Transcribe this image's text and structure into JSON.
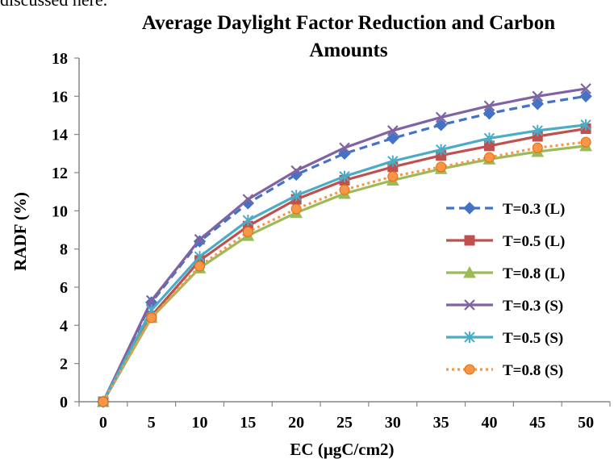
{
  "top_text": "discussed here.",
  "chart_data": {
    "type": "line",
    "title_lines": [
      "Average Daylight Factor Reduction and Carbon",
      "Amounts"
    ],
    "xlabel": "EC (μgC/cm2)",
    "ylabel": "RADF (%)",
    "categories": [
      "0",
      "5",
      "10",
      "15",
      "20",
      "25",
      "30",
      "35",
      "40",
      "45",
      "50"
    ],
    "ylim": [
      0,
      18
    ],
    "yticks": [
      "0",
      "2",
      "4",
      "6",
      "8",
      "10",
      "12",
      "14",
      "16",
      "18"
    ],
    "grid": false,
    "legend_position": "right",
    "series": [
      {
        "name": "T=0.3 (L)",
        "color": "#4472C4",
        "marker": "diamond",
        "dash": "dashed",
        "values": [
          0,
          5.2,
          8.4,
          10.4,
          11.9,
          13.0,
          13.8,
          14.5,
          15.1,
          15.6,
          16.0
        ]
      },
      {
        "name": "T=0.5 (L)",
        "color": "#C0504D",
        "marker": "square",
        "dash": "solid",
        "values": [
          0,
          4.5,
          7.4,
          9.2,
          10.6,
          11.6,
          12.3,
          12.9,
          13.4,
          13.9,
          14.3
        ]
      },
      {
        "name": "T=0.8 (L)",
        "color": "#9BBB59",
        "marker": "triangle",
        "dash": "solid",
        "values": [
          0,
          4.4,
          7.0,
          8.7,
          9.9,
          10.9,
          11.6,
          12.2,
          12.7,
          13.1,
          13.4
        ]
      },
      {
        "name": "T=0.3 (S)",
        "color": "#8064A2",
        "marker": "x",
        "dash": "solid",
        "values": [
          0,
          5.3,
          8.5,
          10.6,
          12.1,
          13.3,
          14.2,
          14.9,
          15.5,
          16.0,
          16.4
        ]
      },
      {
        "name": "T=0.5 (S)",
        "color": "#4BACC6",
        "marker": "star",
        "dash": "solid",
        "values": [
          0,
          4.8,
          7.6,
          9.5,
          10.8,
          11.8,
          12.6,
          13.2,
          13.8,
          14.2,
          14.5
        ]
      },
      {
        "name": "T=0.8 (S)",
        "color": "#F79646",
        "marker": "circle",
        "dash": "dotted",
        "values": [
          0,
          4.4,
          7.1,
          8.9,
          10.1,
          11.1,
          11.8,
          12.3,
          12.8,
          13.3,
          13.6
        ]
      }
    ]
  }
}
